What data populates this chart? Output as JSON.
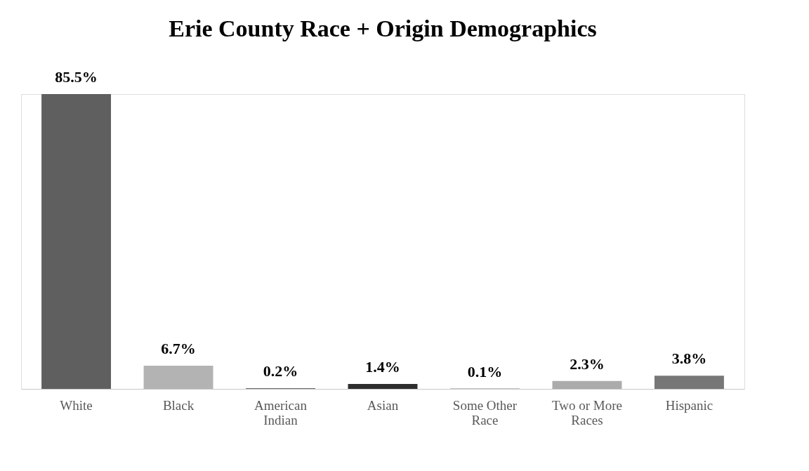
{
  "chart_data": {
    "type": "bar",
    "title": "Erie County Race + Origin Demographics",
    "categories": [
      "White",
      "Black",
      "American Indian",
      "Asian",
      "Some Other Race",
      "Two or More Races",
      "Hispanic"
    ],
    "values": [
      85.5,
      6.7,
      0.2,
      1.4,
      0.1,
      2.3,
      3.8
    ],
    "colors": [
      "#5f5f5f",
      "#b3b3b3",
      "#6a6a6a",
      "#2e2e2e",
      "#8a8a8a",
      "#ababab",
      "#777777"
    ],
    "value_labels": [
      "85.5%",
      "6.7%",
      "0.2%",
      "1.4%",
      "0.1%",
      "2.3%",
      "3.8%"
    ],
    "grid": false
  }
}
